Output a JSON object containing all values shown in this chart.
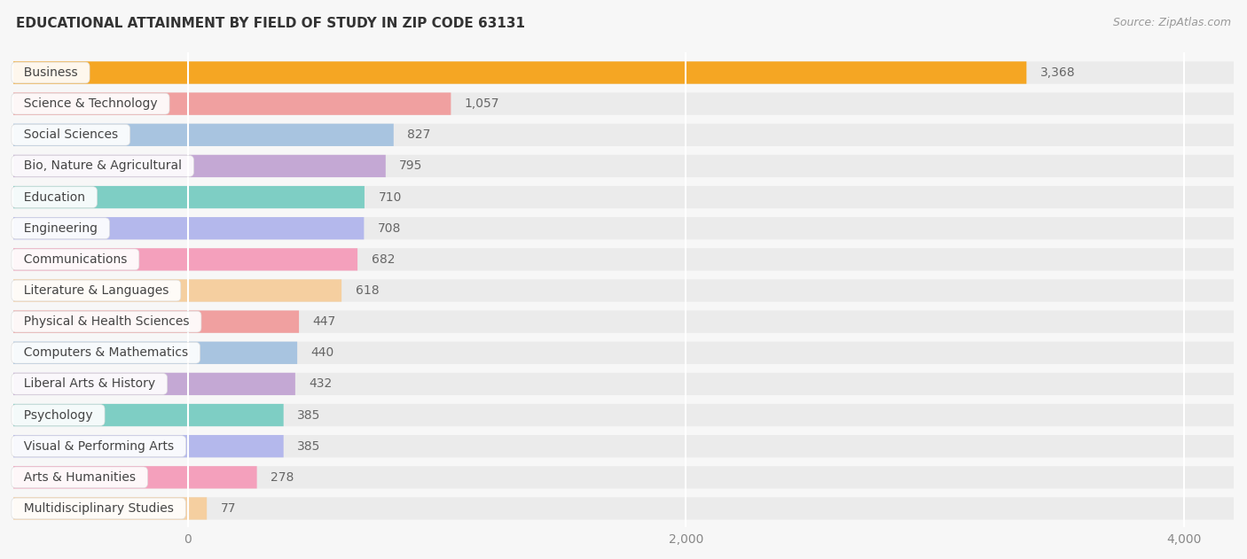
{
  "title": "EDUCATIONAL ATTAINMENT BY FIELD OF STUDY IN ZIP CODE 63131",
  "source": "Source: ZipAtlas.com",
  "categories": [
    "Business",
    "Science & Technology",
    "Social Sciences",
    "Bio, Nature & Agricultural",
    "Education",
    "Engineering",
    "Communications",
    "Literature & Languages",
    "Physical & Health Sciences",
    "Computers & Mathematics",
    "Liberal Arts & History",
    "Psychology",
    "Visual & Performing Arts",
    "Arts & Humanities",
    "Multidisciplinary Studies"
  ],
  "values": [
    3368,
    1057,
    827,
    795,
    710,
    708,
    682,
    618,
    447,
    440,
    432,
    385,
    385,
    278,
    77
  ],
  "bar_colors": [
    "#F5A623",
    "#F0A0A0",
    "#A8C4E0",
    "#C4A8D4",
    "#7ECEC4",
    "#B4B8EC",
    "#F4A0BC",
    "#F5CFA0",
    "#F0A0A0",
    "#A8C4E0",
    "#C4A8D4",
    "#7ECEC4",
    "#B4B8EC",
    "#F4A0BC",
    "#F5CFA0"
  ],
  "xlim_left": -700,
  "xlim_right": 4200,
  "xticks": [
    0,
    2000,
    4000
  ],
  "background_color": "#f7f7f7",
  "bar_bg_color": "#ebebeb",
  "title_fontsize": 11,
  "source_fontsize": 9,
  "label_fontsize": 10,
  "value_fontsize": 10
}
